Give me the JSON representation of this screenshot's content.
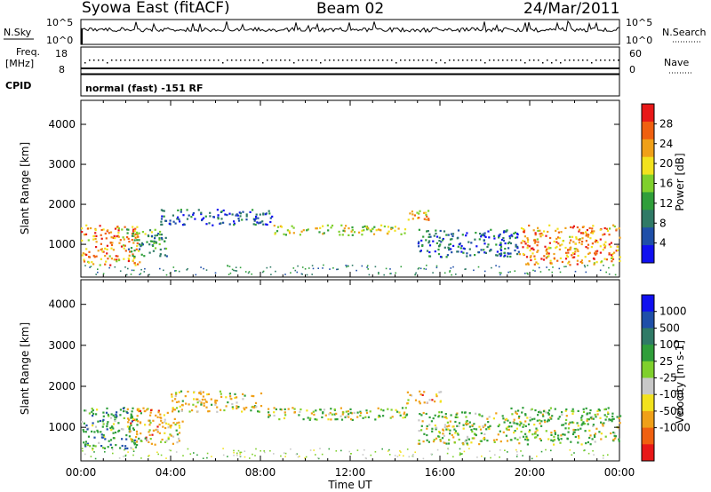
{
  "header": {
    "title": "Syowa East (fitACF)",
    "beam": "Beam 02",
    "date": "24/Mar/2011"
  },
  "top_panels": {
    "nsky_label": "N.Sky",
    "nsky_ticks": [
      "10^5",
      "10^0"
    ],
    "nsearch_label": "N.Search",
    "nsearch_ticks": [
      "10^5",
      "10^0"
    ],
    "freq_label_1": "Freq.",
    "freq_label_2": "[MHz]",
    "freq_ticks": [
      "18",
      "8"
    ],
    "nave_label": "Nave",
    "nave_ticks": [
      "60",
      "0"
    ],
    "cpid_label": "CPID",
    "cpid_text": "normal (fast) -151 RF"
  },
  "colors": {
    "power_scale": [
      "#1010f0",
      "#1f4fa8",
      "#2f7a66",
      "#2f9e3a",
      "#7fd02c",
      "#f2e21e",
      "#f0a018",
      "#f06010",
      "#e81818"
    ],
    "velocity_scale": [
      "#1010f0",
      "#1f4fa8",
      "#2f7a66",
      "#2f9e3a",
      "#7fd02c",
      "#c8c8c8",
      "#f2e21e",
      "#f0a018",
      "#f06010",
      "#e81818"
    ]
  },
  "chart_data": [
    {
      "type": "heatmap",
      "panel": "power",
      "xlabel": "Time UT",
      "ylabel": "Slant Range [km]",
      "xlim": [
        0,
        24
      ],
      "ylim": [
        180,
        4600
      ],
      "x_ticks": [
        "00:00",
        "04:00",
        "08:00",
        "12:00",
        "16:00",
        "20:00",
        "00:00"
      ],
      "y_ticks": [
        "1000",
        "2000",
        "3000",
        "4000"
      ],
      "colorbar_label": "Power [dB]",
      "colorbar_ticks": [
        "4",
        "8",
        "12",
        "16",
        "20",
        "24",
        "28"
      ],
      "colorbar_range": [
        0,
        32
      ],
      "regions": [
        {
          "t0": 0.0,
          "t1": 2.6,
          "r0": 500,
          "r1": 1500,
          "value": 24
        },
        {
          "t0": 2.0,
          "t1": 3.8,
          "r0": 700,
          "r1": 1400,
          "value": 12
        },
        {
          "t0": 3.5,
          "t1": 8.5,
          "r0": 1500,
          "r1": 1900,
          "value": 6
        },
        {
          "t0": 8.5,
          "t1": 14.5,
          "r0": 1250,
          "r1": 1500,
          "value": 18
        },
        {
          "t0": 14.3,
          "t1": 15.5,
          "r0": 1600,
          "r1": 1900,
          "value": 22
        },
        {
          "t0": 15.0,
          "t1": 19.5,
          "r0": 700,
          "r1": 1400,
          "value": 7
        },
        {
          "t0": 19.5,
          "t1": 24.0,
          "r0": 500,
          "r1": 1500,
          "value": 24
        }
      ]
    },
    {
      "type": "heatmap",
      "panel": "velocity",
      "xlabel": "Time UT",
      "ylabel": "Slant Range [km]",
      "xlim": [
        0,
        24
      ],
      "ylim": [
        180,
        4600
      ],
      "x_ticks": [
        "00:00",
        "04:00",
        "08:00",
        "12:00",
        "16:00",
        "20:00",
        "00:00"
      ],
      "y_ticks": [
        "1000",
        "2000",
        "3000",
        "4000"
      ],
      "colorbar_label": "Velocity [m s-1]",
      "colorbar_ticks": [
        "1000",
        "500",
        "100",
        "25",
        "-25",
        "-100",
        "-500",
        "-1000"
      ],
      "regions": [
        {
          "t0": 0.0,
          "t1": 2.5,
          "r0": 500,
          "r1": 1500,
          "value": 300
        },
        {
          "t0": 2.0,
          "t1": 4.5,
          "r0": 600,
          "r1": 1500,
          "value": -200
        },
        {
          "t0": 4.0,
          "t1": 8.0,
          "r0": 1400,
          "r1": 1900,
          "value": -150
        },
        {
          "t0": 8.0,
          "t1": 14.5,
          "r0": 1200,
          "r1": 1500,
          "value": 0
        },
        {
          "t0": 14.5,
          "t1": 16.0,
          "r0": 1600,
          "r1": 1900,
          "value": -300
        },
        {
          "t0": 15.0,
          "t1": 19.0,
          "r0": 600,
          "r1": 1400,
          "value": 60
        },
        {
          "t0": 19.0,
          "t1": 24.0,
          "r0": 600,
          "r1": 1500,
          "value": 150
        }
      ]
    }
  ]
}
